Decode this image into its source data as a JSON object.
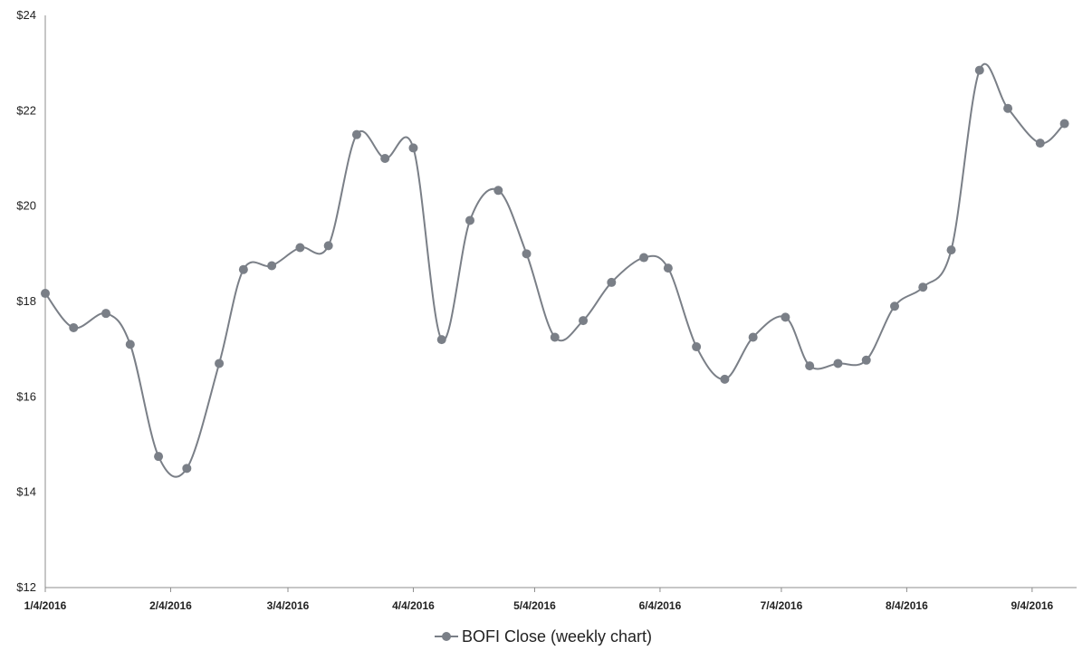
{
  "chart_data": {
    "type": "line",
    "smooth": true,
    "title": "",
    "xlabel": "",
    "ylabel": "",
    "ylim": [
      12,
      24
    ],
    "y_ticks": [
      "$12",
      "$14",
      "$16",
      "$18",
      "$20",
      "$22",
      "$24"
    ],
    "y_tick_values": [
      12,
      14,
      16,
      18,
      20,
      22,
      24
    ],
    "x_tick_labels": [
      "1/4/2016",
      "2/4/2016",
      "3/4/2016",
      "4/4/2016",
      "5/4/2016",
      "6/4/2016",
      "7/4/2016",
      "8/4/2016",
      "9/4/2016"
    ],
    "x_tick_dates": [
      "2016-01-04",
      "2016-02-04",
      "2016-03-04",
      "2016-04-04",
      "2016-05-04",
      "2016-06-04",
      "2016-07-04",
      "2016-08-04",
      "2016-09-04"
    ],
    "x_range": [
      "2016-01-04",
      "2016-09-15"
    ],
    "grid": false,
    "legend_position": "bottom-center",
    "series": [
      {
        "name": "BOFI Close (weekly chart)",
        "color": "#7a7f87",
        "points": [
          {
            "x": "2016-01-04",
            "y": 18.17
          },
          {
            "x": "2016-01-11",
            "y": 17.45
          },
          {
            "x": "2016-01-19",
            "y": 17.75
          },
          {
            "x": "2016-01-25",
            "y": 17.1
          },
          {
            "x": "2016-02-01",
            "y": 14.75
          },
          {
            "x": "2016-02-08",
            "y": 14.5
          },
          {
            "x": "2016-02-16",
            "y": 16.7
          },
          {
            "x": "2016-02-22",
            "y": 18.67
          },
          {
            "x": "2016-02-29",
            "y": 18.75
          },
          {
            "x": "2016-03-07",
            "y": 19.13
          },
          {
            "x": "2016-03-14",
            "y": 19.17
          },
          {
            "x": "2016-03-21",
            "y": 21.5
          },
          {
            "x": "2016-03-28",
            "y": 21.0
          },
          {
            "x": "2016-04-04",
            "y": 21.22
          },
          {
            "x": "2016-04-11",
            "y": 17.2
          },
          {
            "x": "2016-04-18",
            "y": 19.7
          },
          {
            "x": "2016-04-25",
            "y": 20.33
          },
          {
            "x": "2016-05-02",
            "y": 19.0
          },
          {
            "x": "2016-05-09",
            "y": 17.25
          },
          {
            "x": "2016-05-16",
            "y": 17.6
          },
          {
            "x": "2016-05-23",
            "y": 18.4
          },
          {
            "x": "2016-05-31",
            "y": 18.92
          },
          {
            "x": "2016-06-06",
            "y": 18.7
          },
          {
            "x": "2016-06-13",
            "y": 17.05
          },
          {
            "x": "2016-06-20",
            "y": 16.37
          },
          {
            "x": "2016-06-27",
            "y": 17.25
          },
          {
            "x": "2016-07-05",
            "y": 17.67
          },
          {
            "x": "2016-07-11",
            "y": 16.65
          },
          {
            "x": "2016-07-18",
            "y": 16.7
          },
          {
            "x": "2016-07-25",
            "y": 16.77
          },
          {
            "x": "2016-08-01",
            "y": 17.9
          },
          {
            "x": "2016-08-08",
            "y": 18.3
          },
          {
            "x": "2016-08-15",
            "y": 19.08
          },
          {
            "x": "2016-08-22",
            "y": 22.85
          },
          {
            "x": "2016-08-29",
            "y": 22.05
          },
          {
            "x": "2016-09-06",
            "y": 21.32
          },
          {
            "x": "2016-09-12",
            "y": 21.73
          }
        ]
      }
    ]
  }
}
